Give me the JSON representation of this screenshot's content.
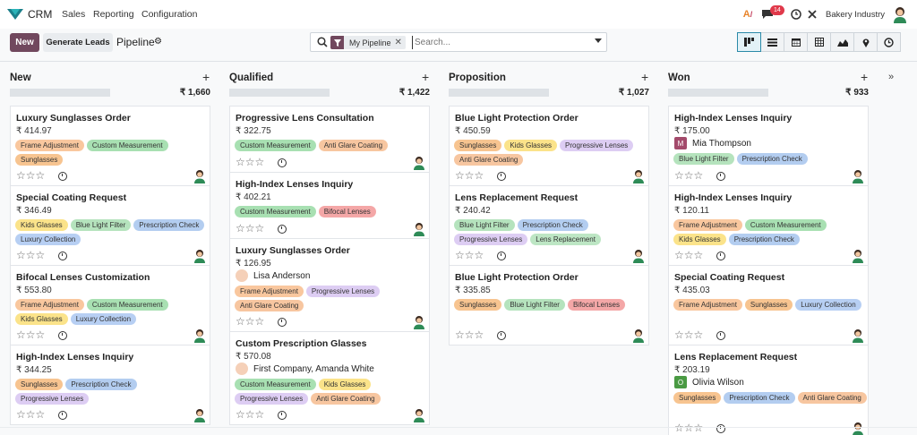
{
  "app": {
    "name": "CRM",
    "menu": [
      "Sales",
      "Reporting",
      "Configuration"
    ],
    "notification_count": "14",
    "company": "Bakery Industry"
  },
  "control": {
    "new_label": "New",
    "generate_label": "Generate Leads",
    "breadcrumb": "Pipeline",
    "facet_label": "My Pipeline",
    "search_placeholder": "Search..."
  },
  "colors": {
    "brand": "#71485e",
    "active_view": "#2b8aa8"
  },
  "tag_colors": {
    "Frame Adjustment": "#f9c79e",
    "Custom Measurement": "#a8e0b2",
    "Sunglasses": "#f7c490",
    "Kids Glasses": "#fbe38a",
    "Blue Light Filter": "#b5e3bd",
    "Prescription Check": "#b3cdf0",
    "Luxury Collection": "#b7cff3",
    "Progressive Lenses": "#ddcdf3",
    "Anti Glare Coating": "#f7c6a0",
    "Bifocal Lenses": "#f4a7a7",
    "Lens Replacement": "#bde6c4"
  },
  "views": [
    "kanban-icon",
    "list-icon",
    "calendar-icon",
    "pivot-icon",
    "graph-icon",
    "map-icon",
    "activity-icon"
  ],
  "columns": [
    {
      "title": "New",
      "total": "₹ 1,660",
      "cards": [
        {
          "title": "Luxury Sunglasses Order",
          "price": "₹ 414.97",
          "contact": null,
          "tags": [
            "Frame Adjustment",
            "Custom Measurement",
            "Sunglasses"
          ]
        },
        {
          "title": "Special Coating Request",
          "price": "₹ 346.49",
          "contact": null,
          "tags": [
            "Kids Glasses",
            "Blue Light Filter",
            "Prescription Check",
            "Luxury Collection"
          ]
        },
        {
          "title": "Bifocal Lenses Customization",
          "price": "₹ 553.80",
          "contact": null,
          "tags": [
            "Frame Adjustment",
            "Custom Measurement",
            "Kids Glasses",
            "Luxury Collection"
          ]
        },
        {
          "title": "High-Index Lenses Inquiry",
          "price": "₹ 344.25",
          "contact": null,
          "tags": [
            "Sunglasses",
            "Prescription Check",
            "Progressive Lenses"
          ]
        }
      ]
    },
    {
      "title": "Qualified",
      "total": "₹ 1,422",
      "cards": [
        {
          "title": "Progressive Lens Consultation",
          "price": "₹ 322.75",
          "contact": null,
          "tags": [
            "Custom Measurement",
            "Anti Glare Coating"
          ]
        },
        {
          "title": "High-Index Lenses Inquiry",
          "price": "₹ 402.21",
          "contact": null,
          "tags": [
            "Custom Measurement",
            "Bifocal Lenses"
          ]
        },
        {
          "title": "Luxury Sunglasses Order",
          "price": "₹ 126.95",
          "contact": "Lisa Anderson",
          "tags": [
            "Frame Adjustment",
            "Progressive Lenses",
            "Anti Glare Coating"
          ]
        },
        {
          "title": "Custom Prescription Glasses",
          "price": "₹ 570.08",
          "contact": "First Company, Amanda White",
          "tags": [
            "Custom Measurement",
            "Kids Glasses",
            "Progressive Lenses",
            "Anti Glare Coating"
          ]
        }
      ]
    },
    {
      "title": "Proposition",
      "total": "₹ 1,027",
      "cards": [
        {
          "title": "Blue Light Protection Order",
          "price": "₹ 450.59",
          "contact": null,
          "tags": [
            "Sunglasses",
            "Kids Glasses",
            "Progressive Lenses",
            "Anti Glare Coating"
          ]
        },
        {
          "title": "Lens Replacement Request",
          "price": "₹ 240.42",
          "contact": null,
          "tags": [
            "Blue Light Filter",
            "Prescription Check",
            "Progressive Lenses",
            "Lens Replacement"
          ]
        },
        {
          "title": "Blue Light Protection Order",
          "price": "₹ 335.85",
          "contact": null,
          "tags": [
            "Sunglasses",
            "Blue Light Filter",
            "Bifocal Lenses"
          ]
        }
      ]
    },
    {
      "title": "Won",
      "total": "₹ 933",
      "cards": [
        {
          "title": "High-Index Lenses Inquiry",
          "price": "₹ 175.00",
          "contact": "Mia Thompson",
          "contact_initial": "M",
          "contact_color": "#a34a6b",
          "tags": [
            "Blue Light Filter",
            "Prescription Check"
          ]
        },
        {
          "title": "High-Index Lenses Inquiry",
          "price": "₹ 120.11",
          "contact": null,
          "tags": [
            "Frame Adjustment",
            "Custom Measurement",
            "Kids Glasses",
            "Prescription Check"
          ]
        },
        {
          "title": "Special Coating Request",
          "price": "₹ 435.03",
          "contact": null,
          "tags": [
            "Frame Adjustment",
            "Sunglasses",
            "Luxury Collection"
          ]
        },
        {
          "title": "Lens Replacement Request",
          "price": "₹ 203.19",
          "contact": "Olivia Wilson",
          "contact_initial": "O",
          "contact_color": "#4a9a43",
          "tags": [
            "Sunglasses",
            "Prescription Check",
            "Anti Glare Coating"
          ]
        }
      ]
    }
  ]
}
